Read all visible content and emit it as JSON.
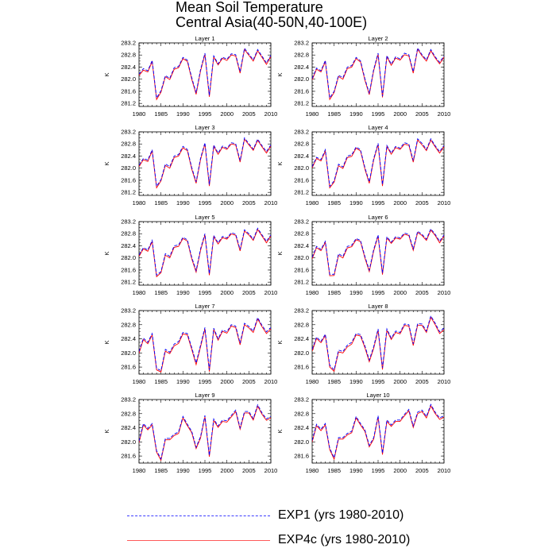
{
  "title_line1": "Mean Soil Temperature",
  "title_line2": "Central Asia(40-50N,40-100E)",
  "legend": [
    {
      "label": "EXP1 (yrs 1980-2010)",
      "color": "#0000ff",
      "style": "dashed"
    },
    {
      "label": "EXP4c (yrs 1980-2010)",
      "color": "#ff0000",
      "style": "solid"
    }
  ],
  "chart_data": {
    "type": "line",
    "x": [
      1980,
      1981,
      1982,
      1983,
      1984,
      1985,
      1986,
      1987,
      1988,
      1989,
      1990,
      1991,
      1992,
      1993,
      1994,
      1995,
      1996,
      1997,
      1998,
      1999,
      2000,
      2001,
      2002,
      2003,
      2004,
      2005,
      2006,
      2007,
      2008,
      2009,
      2010
    ],
    "xticks": [
      1980,
      1985,
      1990,
      1995,
      2000,
      2005,
      2010
    ],
    "xlim": [
      1980,
      2010
    ],
    "ylabel": "K",
    "panels": [
      {
        "title": "Layer 1",
        "ylim": [
          281.1,
          283.2
        ],
        "yticks": [
          "281.2",
          "281.6",
          "282.0",
          "282.4",
          "282.8",
          "283.2"
        ],
        "series": [
          {
            "name": "EXP1",
            "values": [
              282.17,
              282.35,
              282.28,
              282.62,
              281.38,
              281.62,
              282.12,
              282.03,
              282.38,
              282.42,
              282.72,
              282.63,
              282.05,
              281.55,
              282.32,
              282.86,
              281.47,
              282.77,
              282.51,
              282.73,
              282.66,
              282.84,
              282.81,
              282.25,
              283.02,
              282.83,
              282.64,
              282.98,
              282.76,
              282.54,
              282.79
            ]
          },
          {
            "name": "EXP4c",
            "values": [
              282.12,
              282.3,
              282.24,
              282.58,
              281.33,
              281.57,
              282.08,
              281.99,
              282.33,
              282.38,
              282.68,
              282.59,
              282.0,
              281.5,
              282.27,
              282.82,
              281.42,
              282.73,
              282.47,
              282.69,
              282.62,
              282.8,
              282.77,
              282.2,
              282.98,
              282.79,
              282.6,
              282.94,
              282.72,
              282.49,
              282.75
            ]
          }
        ]
      },
      {
        "title": "Layer 2",
        "ylim": [
          281.1,
          283.2
        ],
        "yticks": [
          "281.2",
          "281.6",
          "282.0",
          "282.4",
          "282.8",
          "283.2"
        ],
        "series": [
          {
            "name": "EXP1",
            "values": [
              282.02,
              282.37,
              282.28,
              282.62,
              281.38,
              281.6,
              282.13,
              282.05,
              282.4,
              282.45,
              282.72,
              282.61,
              282.02,
              281.53,
              282.33,
              282.86,
              281.44,
              282.78,
              282.5,
              282.74,
              282.67,
              282.86,
              282.81,
              282.25,
              283.03,
              282.81,
              282.64,
              282.98,
              282.74,
              282.56,
              282.77
            ]
          },
          {
            "name": "EXP4c",
            "values": [
              281.98,
              282.33,
              282.24,
              282.58,
              281.33,
              281.56,
              282.09,
              282.0,
              282.35,
              282.4,
              282.68,
              282.57,
              281.97,
              281.49,
              282.28,
              282.82,
              281.4,
              282.74,
              282.46,
              282.7,
              282.63,
              282.81,
              282.77,
              282.2,
              282.99,
              282.77,
              282.6,
              282.94,
              282.7,
              282.51,
              282.73
            ]
          }
        ]
      },
      {
        "title": "Layer 3",
        "ylim": [
          281.1,
          283.2
        ],
        "yticks": [
          "281.2",
          "281.6",
          "282.0",
          "282.4",
          "282.8",
          "283.2"
        ],
        "series": [
          {
            "name": "EXP1",
            "values": [
              282.1,
              282.32,
              282.27,
              282.61,
              281.4,
              281.62,
              282.14,
              282.05,
              282.4,
              282.45,
              282.72,
              282.62,
              282.02,
              281.55,
              282.33,
              282.84,
              281.46,
              282.76,
              282.5,
              282.73,
              282.66,
              282.84,
              282.81,
              282.25,
              283.0,
              282.81,
              282.63,
              282.96,
              282.74,
              282.55,
              282.77
            ]
          },
          {
            "name": "EXP4c",
            "values": [
              282.05,
              282.28,
              282.22,
              282.57,
              281.35,
              281.58,
              282.09,
              282.0,
              282.35,
              282.4,
              282.67,
              282.58,
              281.97,
              281.5,
              282.28,
              282.8,
              281.41,
              282.72,
              282.46,
              282.69,
              282.62,
              282.8,
              282.77,
              282.2,
              282.96,
              282.77,
              282.59,
              282.92,
              282.7,
              282.5,
              282.73
            ]
          }
        ]
      },
      {
        "title": "Layer 4",
        "ylim": [
          281.1,
          283.2
        ],
        "yticks": [
          "281.2",
          "281.6",
          "282.0",
          "282.4",
          "282.8",
          "283.2"
        ],
        "series": [
          {
            "name": "EXP1",
            "values": [
              282.05,
              282.36,
              282.28,
              282.61,
              281.4,
              281.58,
              282.13,
              282.04,
              282.4,
              282.44,
              282.7,
              282.61,
              282.02,
              281.55,
              282.32,
              282.82,
              281.46,
              282.75,
              282.5,
              282.72,
              282.66,
              282.84,
              282.8,
              282.25,
              282.97,
              282.82,
              282.62,
              282.97,
              282.74,
              282.55,
              282.75
            ]
          },
          {
            "name": "EXP4c",
            "values": [
              282.01,
              282.32,
              282.24,
              282.56,
              281.35,
              281.54,
              282.08,
              281.99,
              282.35,
              282.39,
              282.66,
              282.57,
              281.97,
              281.5,
              282.27,
              282.78,
              281.41,
              282.71,
              282.46,
              282.68,
              282.62,
              282.79,
              282.76,
              282.2,
              282.93,
              282.77,
              282.58,
              282.93,
              282.7,
              282.5,
              282.71
            ]
          }
        ]
      },
      {
        "title": "Layer 5",
        "ylim": [
          281.1,
          283.2
        ],
        "yticks": [
          "281.2",
          "281.6",
          "282.0",
          "282.4",
          "282.8",
          "283.2"
        ],
        "series": [
          {
            "name": "EXP1",
            "values": [
              282.1,
              282.34,
              282.26,
              282.58,
              281.43,
              281.55,
              282.14,
              282.05,
              282.4,
              282.43,
              282.68,
              282.6,
              282.02,
              281.58,
              282.3,
              282.8,
              281.48,
              282.74,
              282.5,
              282.71,
              282.66,
              282.83,
              282.79,
              282.28,
              282.93,
              282.8,
              282.62,
              282.98,
              282.76,
              282.55,
              282.76
            ]
          },
          {
            "name": "EXP4c",
            "values": [
              282.05,
              282.3,
              282.22,
              282.54,
              281.38,
              281.51,
              282.09,
              282.0,
              282.35,
              282.38,
              282.64,
              282.56,
              281.97,
              281.53,
              282.25,
              282.76,
              281.43,
              282.7,
              282.46,
              282.67,
              282.62,
              282.79,
              282.75,
              282.23,
              282.89,
              282.76,
              282.58,
              282.94,
              282.72,
              282.5,
              282.72
            ]
          }
        ]
      },
      {
        "title": "Layer 6",
        "ylim": [
          281.1,
          283.2
        ],
        "yticks": [
          "281.2",
          "281.6",
          "282.0",
          "282.4",
          "282.8",
          "283.2"
        ],
        "series": [
          {
            "name": "EXP1",
            "values": [
              282.02,
              282.38,
              282.28,
              282.55,
              281.46,
              281.46,
              282.14,
              282.05,
              282.38,
              282.42,
              282.64,
              282.58,
              282.05,
              281.6,
              282.28,
              282.76,
              281.5,
              282.7,
              282.52,
              282.7,
              282.66,
              282.82,
              282.78,
              282.3,
              282.88,
              282.78,
              282.62,
              282.96,
              282.78,
              282.55,
              282.76
            ]
          },
          {
            "name": "EXP4c",
            "values": [
              281.97,
              282.34,
              282.24,
              282.51,
              281.41,
              281.42,
              282.09,
              282.0,
              282.33,
              282.37,
              282.6,
              282.54,
              282.0,
              281.55,
              282.23,
              282.72,
              281.45,
              282.66,
              282.48,
              282.66,
              282.62,
              282.78,
              282.74,
              282.25,
              282.84,
              282.74,
              282.58,
              282.92,
              282.74,
              282.5,
              282.72
            ]
          }
        ]
      },
      {
        "title": "Layer 7",
        "ylim": [
          281.4,
          283.2
        ],
        "yticks": [
          "281.6",
          "282.0",
          "282.4",
          "282.8",
          "283.2"
        ],
        "series": [
          {
            "name": "EXP1",
            "values": [
              282.04,
              282.42,
              282.3,
              282.55,
              281.56,
              281.5,
              282.1,
              282.02,
              282.25,
              282.32,
              282.58,
              282.55,
              282.15,
              281.72,
              282.22,
              282.72,
              281.52,
              282.7,
              282.4,
              282.65,
              282.6,
              282.8,
              282.76,
              282.28,
              282.84,
              282.75,
              282.62,
              283.0,
              282.78,
              282.6,
              282.72
            ]
          },
          {
            "name": "EXP4c",
            "values": [
              281.99,
              282.38,
              282.26,
              282.51,
              281.52,
              281.46,
              282.05,
              281.98,
              282.2,
              282.27,
              282.54,
              282.51,
              282.1,
              281.67,
              282.17,
              282.68,
              281.47,
              282.66,
              282.36,
              282.61,
              282.56,
              282.76,
              282.72,
              282.23,
              282.8,
              282.71,
              282.58,
              282.96,
              282.74,
              282.55,
              282.68
            ]
          }
        ]
      },
      {
        "title": "Layer 8",
        "ylim": [
          281.4,
          283.2
        ],
        "yticks": [
          "281.6",
          "282.0",
          "282.4",
          "282.8",
          "283.2"
        ],
        "series": [
          {
            "name": "EXP1",
            "values": [
              282.1,
              282.45,
              282.33,
              282.53,
              281.65,
              281.52,
              282.08,
              282.04,
              282.22,
              282.3,
              282.55,
              282.52,
              282.2,
              281.8,
              282.18,
              282.68,
              281.58,
              282.68,
              282.42,
              282.62,
              282.58,
              282.82,
              282.8,
              282.26,
              282.83,
              282.82,
              282.62,
              283.05,
              282.84,
              282.6,
              282.7
            ]
          },
          {
            "name": "EXP4c",
            "values": [
              282.05,
              282.41,
              282.29,
              282.49,
              281.6,
              281.48,
              282.03,
              282.0,
              282.17,
              282.25,
              282.51,
              282.48,
              282.15,
              281.75,
              282.13,
              282.64,
              281.53,
              282.64,
              282.38,
              282.58,
              282.54,
              282.78,
              282.76,
              282.21,
              282.79,
              282.78,
              282.58,
              283.01,
              282.8,
              282.55,
              282.66
            ]
          }
        ]
      },
      {
        "title": "Layer 9",
        "ylim": [
          281.4,
          283.2
        ],
        "yticks": [
          "281.6",
          "282.0",
          "282.4",
          "282.8",
          "283.2"
        ],
        "series": [
          {
            "name": "EXP1",
            "values": [
              282.02,
              282.52,
              282.38,
              282.52,
              281.75,
              281.52,
              282.1,
              282.1,
              282.22,
              282.28,
              282.72,
              282.5,
              282.3,
              281.85,
              282.15,
              282.75,
              281.62,
              282.65,
              282.45,
              282.62,
              282.6,
              282.75,
              282.9,
              282.4,
              282.86,
              282.86,
              282.66,
              283.05,
              282.82,
              282.65,
              282.72
            ]
          },
          {
            "name": "EXP4c",
            "values": [
              281.98,
              282.48,
              282.34,
              282.48,
              281.71,
              281.48,
              282.06,
              282.06,
              282.18,
              282.24,
              282.68,
              282.46,
              282.26,
              281.81,
              282.11,
              282.71,
              281.58,
              282.61,
              282.41,
              282.58,
              282.56,
              282.71,
              282.86,
              282.36,
              282.82,
              282.82,
              282.62,
              283.01,
              282.78,
              282.61,
              282.68
            ]
          }
        ]
      },
      {
        "title": "Layer 10",
        "ylim": [
          281.4,
          283.2
        ],
        "yticks": [
          "281.6",
          "282.0",
          "282.4",
          "282.8",
          "283.2"
        ],
        "series": [
          {
            "name": "EXP1",
            "values": [
              282.04,
              282.5,
              282.36,
              282.52,
              281.82,
              281.55,
              282.12,
              282.12,
              282.24,
              282.3,
              282.72,
              282.52,
              282.34,
              281.9,
              282.12,
              282.74,
              281.68,
              282.62,
              282.48,
              282.62,
              282.62,
              282.78,
              282.92,
              282.45,
              282.84,
              282.9,
              282.72,
              283.06,
              282.84,
              282.68,
              282.74
            ]
          },
          {
            "name": "EXP4c",
            "values": [
              282.0,
              282.46,
              282.32,
              282.48,
              281.78,
              281.51,
              282.08,
              282.08,
              282.2,
              282.26,
              282.68,
              282.48,
              282.3,
              281.86,
              282.08,
              282.7,
              281.64,
              282.58,
              282.44,
              282.58,
              282.58,
              282.74,
              282.88,
              282.41,
              282.8,
              282.86,
              282.68,
              283.02,
              282.8,
              282.64,
              282.7
            ]
          }
        ]
      }
    ]
  }
}
